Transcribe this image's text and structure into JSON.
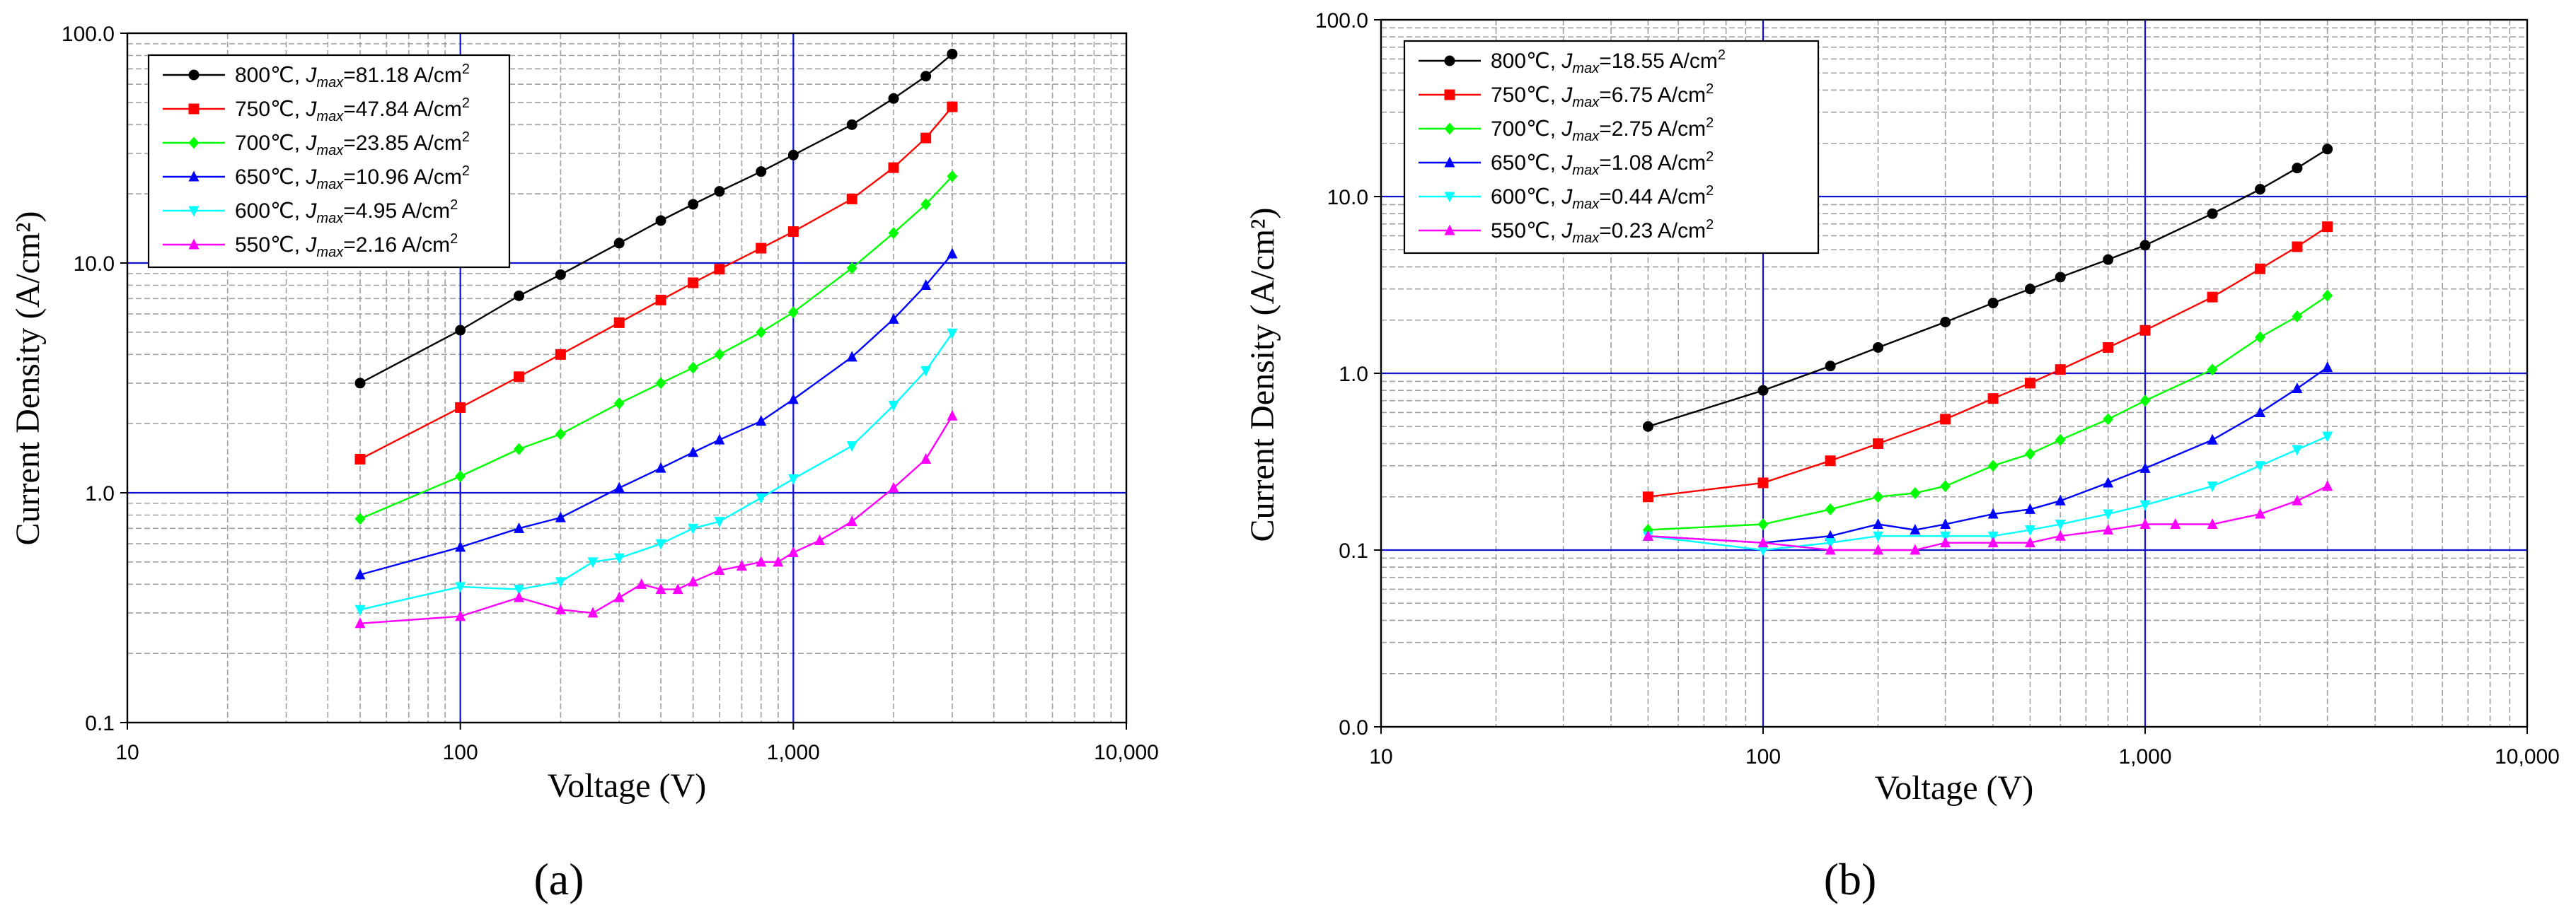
{
  "chart_data": [
    {
      "type": "line",
      "panel_label": "(a)",
      "xlabel": "Voltage (V)",
      "ylabel": "Current Density (A/cm²)",
      "xscale": "log",
      "yscale": "log",
      "xlim": [
        10,
        10000
      ],
      "ylim": [
        0.1,
        100
      ],
      "x_ticks": [
        10,
        100,
        1000,
        10000
      ],
      "x_tick_labels": [
        "10",
        "100",
        "1,000",
        "10,000"
      ],
      "y_ticks": [
        0.1,
        1,
        10,
        100
      ],
      "y_tick_labels": [
        "0.1",
        "1.0",
        "10.0",
        "100.0"
      ],
      "grid": true,
      "legend_position": "top-left",
      "series": [
        {
          "name": "800℃",
          "legend_prefix": "800℃, ",
          "jmax_label": "=81.18 A/cm",
          "color": "#000000",
          "marker": "circle",
          "x": [
            50,
            100,
            150,
            200,
            300,
            400,
            500,
            600,
            800,
            1000,
            1500,
            2000,
            2500,
            3000
          ],
          "y": [
            3.0,
            5.1,
            7.2,
            8.9,
            12.2,
            15.3,
            18.0,
            20.5,
            25.0,
            29.5,
            40.0,
            52.0,
            65.0,
            81.18
          ]
        },
        {
          "name": "750℃",
          "legend_prefix": "750℃, ",
          "jmax_label": "=47.84 A/cm",
          "color": "#ff0000",
          "marker": "square",
          "x": [
            50,
            100,
            150,
            200,
            300,
            400,
            500,
            600,
            800,
            1000,
            1500,
            2000,
            2500,
            3000
          ],
          "y": [
            1.4,
            2.35,
            3.2,
            4.0,
            5.5,
            6.9,
            8.2,
            9.4,
            11.6,
            13.7,
            19.0,
            26.0,
            35.0,
            47.84
          ]
        },
        {
          "name": "700℃",
          "legend_prefix": "700℃, ",
          "jmax_label": "=23.85 A/cm",
          "color": "#00ff00",
          "marker": "diamond",
          "x": [
            50,
            100,
            150,
            200,
            300,
            400,
            500,
            600,
            800,
            1000,
            1500,
            2000,
            2500,
            3000
          ],
          "y": [
            0.77,
            1.18,
            1.55,
            1.8,
            2.45,
            3.0,
            3.5,
            4.0,
            5.0,
            6.1,
            9.5,
            13.5,
            18.0,
            23.85
          ]
        },
        {
          "name": "650℃",
          "legend_prefix": "650℃, ",
          "jmax_label": "=10.96 A/cm",
          "color": "#0000ff",
          "marker": "triangle-up",
          "x": [
            50,
            100,
            150,
            200,
            300,
            400,
            500,
            600,
            800,
            1000,
            1500,
            2000,
            2500,
            3000
          ],
          "y": [
            0.44,
            0.58,
            0.7,
            0.78,
            1.05,
            1.28,
            1.5,
            1.7,
            2.05,
            2.55,
            3.9,
            5.7,
            8.0,
            10.96
          ]
        },
        {
          "name": "600℃",
          "legend_prefix": "600℃, ",
          "jmax_label": "=4.95 A/cm",
          "color": "#00ffff",
          "marker": "triangle-down",
          "x": [
            50,
            100,
            150,
            200,
            250,
            300,
            400,
            500,
            600,
            800,
            1000,
            1500,
            2000,
            2500,
            3000
          ],
          "y": [
            0.31,
            0.39,
            0.38,
            0.41,
            0.5,
            0.52,
            0.6,
            0.7,
            0.75,
            0.95,
            1.15,
            1.6,
            2.4,
            3.4,
            4.95
          ]
        },
        {
          "name": "550℃",
          "legend_prefix": "550℃, ",
          "jmax_label": "=2.16 A/cm",
          "color": "#ff00ff",
          "marker": "triangle-up",
          "x": [
            50,
            100,
            150,
            200,
            250,
            300,
            350,
            400,
            450,
            500,
            600,
            700,
            800,
            900,
            1000,
            1200,
            1500,
            2000,
            2500,
            3000
          ],
          "y": [
            0.27,
            0.29,
            0.35,
            0.31,
            0.3,
            0.35,
            0.4,
            0.38,
            0.38,
            0.41,
            0.46,
            0.48,
            0.5,
            0.5,
            0.55,
            0.62,
            0.75,
            1.05,
            1.4,
            2.16
          ]
        }
      ]
    },
    {
      "type": "line",
      "panel_label": "(b)",
      "xlabel": "Voltage (V)",
      "ylabel": "Current Density (A/cm²)",
      "xscale": "log",
      "yscale": "log",
      "xlim": [
        10,
        10000
      ],
      "ylim": [
        0.01,
        100
      ],
      "x_ticks": [
        10,
        100,
        1000,
        10000
      ],
      "x_tick_labels": [
        "10",
        "100",
        "1,000",
        "10,000"
      ],
      "y_ticks": [
        0.01,
        0.1,
        1,
        10,
        100
      ],
      "y_tick_labels": [
        "0.0",
        "0.1",
        "1.0",
        "10.0",
        "100.0"
      ],
      "grid": true,
      "legend_position": "top-left",
      "series": [
        {
          "name": "800℃",
          "legend_prefix": "800℃, ",
          "jmax_label": "=18.55 A/cm",
          "color": "#000000",
          "marker": "circle",
          "x": [
            50,
            100,
            150,
            200,
            300,
            400,
            500,
            600,
            800,
            1000,
            1500,
            2000,
            2500,
            3000
          ],
          "y": [
            0.5,
            0.8,
            1.1,
            1.4,
            1.95,
            2.5,
            3.0,
            3.5,
            4.4,
            5.3,
            8.0,
            11.0,
            14.5,
            18.55
          ]
        },
        {
          "name": "750℃",
          "legend_prefix": "750℃, ",
          "jmax_label": "=6.75 A/cm",
          "color": "#ff0000",
          "marker": "square",
          "x": [
            50,
            100,
            150,
            200,
            300,
            400,
            500,
            600,
            800,
            1000,
            1500,
            2000,
            2500,
            3000
          ],
          "y": [
            0.2,
            0.24,
            0.32,
            0.4,
            0.55,
            0.72,
            0.88,
            1.05,
            1.4,
            1.75,
            2.7,
            3.9,
            5.2,
            6.75
          ]
        },
        {
          "name": "700℃",
          "legend_prefix": "700℃, ",
          "jmax_label": "=2.75 A/cm",
          "color": "#00ff00",
          "marker": "diamond",
          "x": [
            50,
            100,
            150,
            200,
            250,
            300,
            400,
            500,
            600,
            800,
            1000,
            1500,
            2000,
            2500,
            3000
          ],
          "y": [
            0.13,
            0.14,
            0.17,
            0.2,
            0.21,
            0.23,
            0.3,
            0.35,
            0.42,
            0.55,
            0.7,
            1.05,
            1.6,
            2.1,
            2.75
          ]
        },
        {
          "name": "650℃",
          "legend_prefix": "650℃, ",
          "jmax_label": "=1.08 A/cm",
          "color": "#0000ff",
          "marker": "triangle-up",
          "x": [
            50,
            100,
            150,
            200,
            250,
            300,
            400,
            500,
            600,
            800,
            1000,
            1500,
            2000,
            2500,
            3000
          ],
          "y": [
            0.12,
            0.11,
            0.12,
            0.14,
            0.13,
            0.14,
            0.16,
            0.17,
            0.19,
            0.24,
            0.29,
            0.42,
            0.6,
            0.82,
            1.08
          ]
        },
        {
          "name": "600℃",
          "legend_prefix": "600℃, ",
          "jmax_label": "=0.44 A/cm",
          "color": "#00ffff",
          "marker": "triangle-down",
          "x": [
            50,
            100,
            150,
            200,
            300,
            400,
            500,
            600,
            800,
            1000,
            1500,
            2000,
            2500,
            3000
          ],
          "y": [
            0.12,
            0.1,
            0.11,
            0.12,
            0.12,
            0.12,
            0.13,
            0.14,
            0.16,
            0.18,
            0.23,
            0.3,
            0.37,
            0.44
          ]
        },
        {
          "name": "550℃",
          "legend_prefix": "550℃, ",
          "jmax_label": "=0.23 A/cm",
          "color": "#ff00ff",
          "marker": "triangle-up",
          "x": [
            50,
            100,
            150,
            200,
            250,
            300,
            400,
            500,
            600,
            800,
            1000,
            1200,
            1500,
            2000,
            2500,
            3000
          ],
          "y": [
            0.12,
            0.11,
            0.1,
            0.1,
            0.1,
            0.11,
            0.11,
            0.11,
            0.12,
            0.13,
            0.14,
            0.14,
            0.14,
            0.16,
            0.19,
            0.23
          ]
        }
      ]
    }
  ]
}
